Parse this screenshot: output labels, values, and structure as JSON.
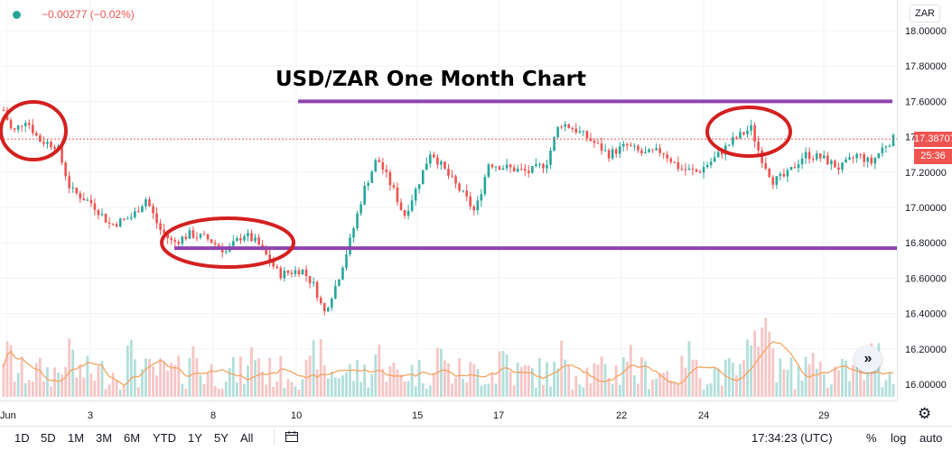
{
  "header": {
    "change_text": "−0.00277 (−0.02%)",
    "status_color": "#26a69a",
    "change_color": "#ef5350",
    "currency": "ZAR"
  },
  "price_axis": {
    "ticks": [
      "18.00000",
      "17.80000",
      "17.60000",
      "17.40000",
      "17.20000",
      "17.00000",
      "16.80000",
      "16.60000",
      "16.40000",
      "16.20000",
      "16.00000"
    ],
    "last_price": "17.38707",
    "countdown": "25:36"
  },
  "time_axis": {
    "ticks": [
      "Jun",
      "3",
      "8",
      "10",
      "15",
      "17",
      "22",
      "24",
      "29"
    ]
  },
  "toolbar": {
    "ranges": [
      "1D",
      "5D",
      "1M",
      "3M",
      "6M",
      "YTD",
      "1Y",
      "5Y",
      "All"
    ],
    "calendar_icon": "calendar-icon",
    "time": "17:34:23 (UTC)",
    "percent": "%",
    "log": "log",
    "auto": "auto",
    "scroll_icon": "chevron-double-right-icon",
    "settings_icon": "gear-icon"
  },
  "annotation": {
    "title": "USD/ZAR One Month Chart",
    "line_color": "#8e44ad",
    "circle_color": "#d42020",
    "resistance_level": 17.6,
    "support_level": 16.77
  },
  "colors": {
    "up": "#26a69a",
    "down": "#ef5350",
    "volume_up": "#b2dfdb",
    "volume_down": "#f7c5c5",
    "volume_ma": "#f4a460"
  },
  "chart_data": {
    "type": "candlestick",
    "symbol": "USD/ZAR",
    "title": "USD/ZAR One Month Chart",
    "ylim": [
      15.9,
      18.1
    ],
    "last_price": 17.38707,
    "x_ticks": [
      "Jun",
      "3",
      "8",
      "10",
      "15",
      "17",
      "22",
      "24",
      "29"
    ],
    "y_ticks": [
      16.0,
      16.2,
      16.4,
      16.6,
      16.8,
      17.0,
      17.2,
      17.4,
      17.6,
      17.8,
      18.0
    ],
    "close_path": [
      {
        "x": 0,
        "y": 17.55
      },
      {
        "x": 1,
        "y": 17.42
      },
      {
        "x": 2.5,
        "y": 17.5
      },
      {
        "x": 4,
        "y": 17.38
      },
      {
        "x": 6,
        "y": 17.35
      },
      {
        "x": 7.5,
        "y": 17.1
      },
      {
        "x": 10,
        "y": 17.02
      },
      {
        "x": 12,
        "y": 16.9
      },
      {
        "x": 14.5,
        "y": 16.95
      },
      {
        "x": 16,
        "y": 17.05
      },
      {
        "x": 17.5,
        "y": 16.88
      },
      {
        "x": 19,
        "y": 16.8
      },
      {
        "x": 21,
        "y": 16.85
      },
      {
        "x": 23,
        "y": 16.82
      },
      {
        "x": 25,
        "y": 16.75
      },
      {
        "x": 27,
        "y": 16.85
      },
      {
        "x": 28.5,
        "y": 16.8
      },
      {
        "x": 31,
        "y": 16.62
      },
      {
        "x": 33.5,
        "y": 16.65
      },
      {
        "x": 35,
        "y": 16.55
      },
      {
        "x": 36,
        "y": 16.4
      },
      {
        "x": 37.5,
        "y": 16.58
      },
      {
        "x": 39,
        "y": 16.82
      },
      {
        "x": 40.5,
        "y": 17.1
      },
      {
        "x": 42,
        "y": 17.28
      },
      {
        "x": 44,
        "y": 17.08
      },
      {
        "x": 45,
        "y": 16.95
      },
      {
        "x": 46.5,
        "y": 17.12
      },
      {
        "x": 48,
        "y": 17.32
      },
      {
        "x": 50,
        "y": 17.18
      },
      {
        "x": 52,
        "y": 17.05
      },
      {
        "x": 53,
        "y": 16.97
      },
      {
        "x": 54.5,
        "y": 17.25
      },
      {
        "x": 57,
        "y": 17.22
      },
      {
        "x": 59,
        "y": 17.2
      },
      {
        "x": 61,
        "y": 17.25
      },
      {
        "x": 62.5,
        "y": 17.48
      },
      {
        "x": 64,
        "y": 17.45
      },
      {
        "x": 66,
        "y": 17.38
      },
      {
        "x": 68,
        "y": 17.3
      },
      {
        "x": 70,
        "y": 17.35
      },
      {
        "x": 72,
        "y": 17.3
      },
      {
        "x": 74,
        "y": 17.32
      },
      {
        "x": 76,
        "y": 17.22
      },
      {
        "x": 78,
        "y": 17.2
      },
      {
        "x": 80,
        "y": 17.28
      },
      {
        "x": 82,
        "y": 17.38
      },
      {
        "x": 84,
        "y": 17.45
      },
      {
        "x": 85,
        "y": 17.3
      },
      {
        "x": 86.5,
        "y": 17.15
      },
      {
        "x": 88,
        "y": 17.18
      },
      {
        "x": 90,
        "y": 17.3
      },
      {
        "x": 92,
        "y": 17.28
      },
      {
        "x": 94,
        "y": 17.22
      },
      {
        "x": 96,
        "y": 17.3
      },
      {
        "x": 97.5,
        "y": 17.25
      },
      {
        "x": 99,
        "y": 17.35
      },
      {
        "x": 100,
        "y": 17.387
      }
    ]
  }
}
